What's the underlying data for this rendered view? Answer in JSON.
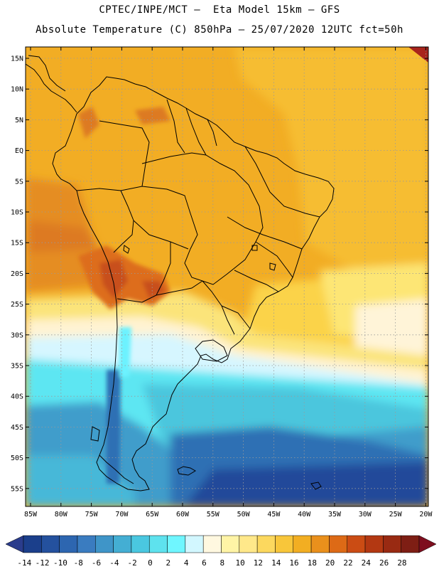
{
  "title_line1": "CPTEC/INPE/MCT –  Eta Model 15km – GFS",
  "title_line2": "Absolute Temperature (C) 850hPa – 25/07/2020 12UTC fct=50h",
  "lat_labels": [
    "15N",
    "10N",
    "5N",
    "EQ",
    "5S",
    "10S",
    "15S",
    "20S",
    "25S",
    "30S",
    "35S",
    "40S",
    "45S",
    "50S",
    "55S"
  ],
  "lon_labels": [
    "85W",
    "80W",
    "75W",
    "70W",
    "65W",
    "60W",
    "55W",
    "50W",
    "45W",
    "40W",
    "35W",
    "30W",
    "25W",
    "20W"
  ],
  "colorbar": {
    "ticks": [
      "-14",
      "-12",
      "-10",
      "-8",
      "-6",
      "-4",
      "-2",
      "0",
      "2",
      "4",
      "6",
      "8",
      "10",
      "12",
      "14",
      "16",
      "18",
      "20",
      "22",
      "24",
      "26",
      "28"
    ],
    "colors": [
      "#1b3f8b",
      "#24519e",
      "#2d66b0",
      "#3a7cc0",
      "#3f95c8",
      "#44aed3",
      "#4ac7e0",
      "#5ee2ee",
      "#6ff6ff",
      "#d2f7ff",
      "#fff8e0",
      "#fff4a6",
      "#ffe88a",
      "#fcd85e",
      "#f8c63a",
      "#f2ae22",
      "#ea901c",
      "#dd6a16",
      "#cb4c14",
      "#b33812",
      "#992a12",
      "#7e1e14"
    ],
    "under_color": "#2a3c8c",
    "over_color": "#7e0e1e"
  },
  "colors": {
    "warm_orange": "#f2ad24",
    "tropics_gold": "#f5bb2e",
    "hot_core": "#d4621a",
    "cold_deep": "#23489a",
    "cyan": "#6cf2ff"
  }
}
